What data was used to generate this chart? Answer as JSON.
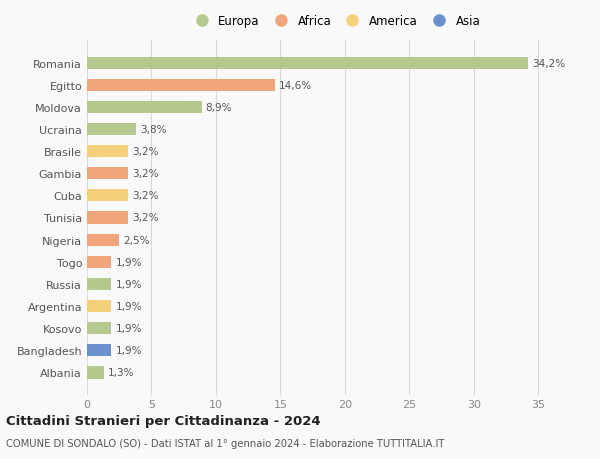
{
  "countries": [
    "Romania",
    "Egitto",
    "Moldova",
    "Ucraina",
    "Brasile",
    "Gambia",
    "Cuba",
    "Tunisia",
    "Nigeria",
    "Togo",
    "Russia",
    "Argentina",
    "Kosovo",
    "Bangladesh",
    "Albania"
  ],
  "values": [
    34.2,
    14.6,
    8.9,
    3.8,
    3.2,
    3.2,
    3.2,
    3.2,
    2.5,
    1.9,
    1.9,
    1.9,
    1.9,
    1.9,
    1.3
  ],
  "labels": [
    "34,2%",
    "14,6%",
    "8,9%",
    "3,8%",
    "3,2%",
    "3,2%",
    "3,2%",
    "3,2%",
    "2,5%",
    "1,9%",
    "1,9%",
    "1,9%",
    "1,9%",
    "1,9%",
    "1,3%"
  ],
  "continents": [
    "Europa",
    "Africa",
    "Europa",
    "Europa",
    "America",
    "Africa",
    "America",
    "Africa",
    "Africa",
    "Africa",
    "Europa",
    "America",
    "Europa",
    "Asia",
    "Europa"
  ],
  "colors": {
    "Europa": "#b5c98e",
    "Africa": "#f0a57a",
    "America": "#f5d07a",
    "Asia": "#6b8fcf"
  },
  "legend_order": [
    "Europa",
    "Africa",
    "America",
    "Asia"
  ],
  "xlim": [
    0,
    37
  ],
  "xticks": [
    0,
    5,
    10,
    15,
    20,
    25,
    30,
    35
  ],
  "title": "Cittadini Stranieri per Cittadinanza - 2024",
  "subtitle": "COMUNE DI SONDALO (SO) - Dati ISTAT al 1° gennaio 2024 - Elaborazione TUTTITALIA.IT",
  "background_color": "#f9f9f9",
  "grid_color": "#d8d8d8",
  "bar_height": 0.55
}
